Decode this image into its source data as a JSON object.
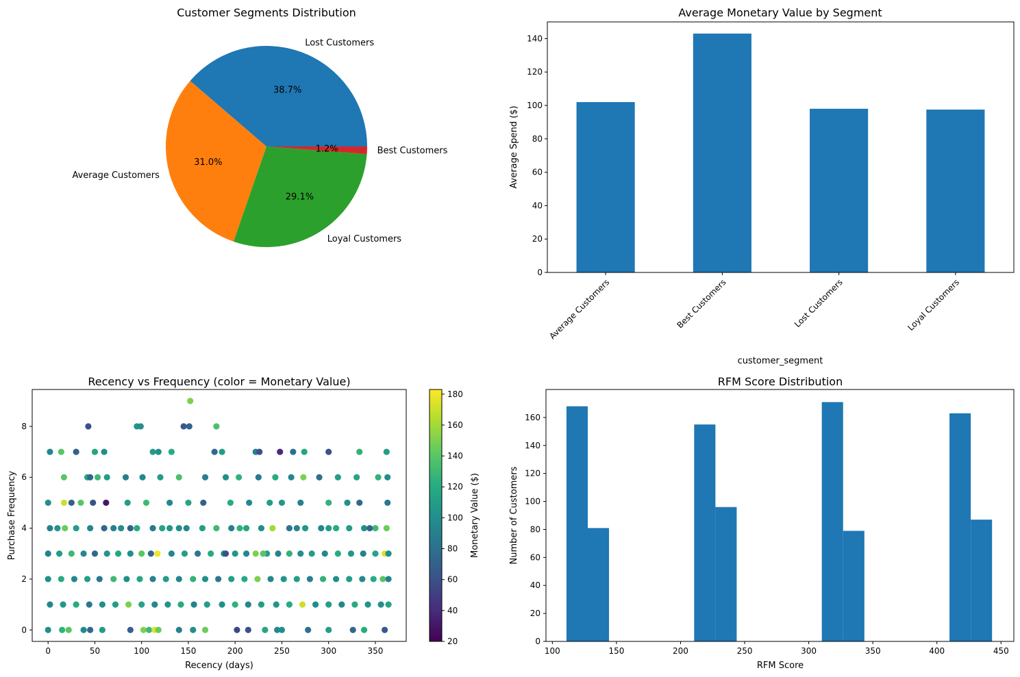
{
  "chart_data": [
    {
      "type": "pie",
      "title": "Customer Segments Distribution",
      "labels": [
        "Lost Customers",
        "Average Customers",
        "Loyal Customers",
        "Best Customers"
      ],
      "values": [
        38.7,
        31.0,
        29.1,
        1.2
      ],
      "pct_labels": [
        "38.7%",
        "31.0%",
        "29.1%",
        "1.2%"
      ],
      "colors": [
        "#1f77b4",
        "#ff7f0e",
        "#2ca02c",
        "#d62728"
      ]
    },
    {
      "type": "bar",
      "title": "Average Monetary Value by Segment",
      "categories": [
        "Average Customers",
        "Best Customers",
        "Lost Customers",
        "Loyal Customers"
      ],
      "values": [
        102,
        143,
        98,
        97.5
      ],
      "xlabel": "customer_segment",
      "ylabel": "Average Spend ($)",
      "ylim": [
        0,
        150
      ],
      "yticks": [
        0,
        20,
        40,
        60,
        80,
        100,
        120,
        140
      ],
      "color": "#1f77b4"
    },
    {
      "type": "scatter",
      "title": "Recency vs Frequency (color = Monetary Value)",
      "xlabel": "Recency (days)",
      "ylabel": "Purchase Frequency",
      "xlim": [
        -17,
        383
      ],
      "ylim": [
        -0.45,
        9.45
      ],
      "xticks": [
        0,
        50,
        100,
        150,
        200,
        250,
        300,
        350
      ],
      "yticks": [
        0,
        2,
        4,
        6,
        8
      ],
      "colorbar": {
        "label": "Monetary Value ($)",
        "range": [
          20,
          183
        ],
        "ticks": [
          20,
          40,
          60,
          80,
          100,
          120,
          140,
          160,
          180
        ],
        "colormap": "viridis"
      },
      "points": [
        [
          152,
          9,
          150
        ],
        [
          43,
          8,
          60
        ],
        [
          95,
          8,
          105
        ],
        [
          99,
          8,
          100
        ],
        [
          145,
          8,
          65
        ],
        [
          151,
          8,
          70
        ],
        [
          180,
          8,
          135
        ],
        [
          2,
          7,
          95
        ],
        [
          14,
          7,
          140
        ],
        [
          30,
          7,
          70
        ],
        [
          50,
          7,
          115
        ],
        [
          60,
          7,
          100
        ],
        [
          112,
          7,
          110
        ],
        [
          118,
          7,
          100
        ],
        [
          132,
          7,
          120
        ],
        [
          178,
          7,
          75
        ],
        [
          186,
          7,
          110
        ],
        [
          222,
          7,
          90
        ],
        [
          226,
          7,
          60
        ],
        [
          248,
          7,
          40
        ],
        [
          262,
          7,
          80
        ],
        [
          274,
          7,
          115
        ],
        [
          300,
          7,
          60
        ],
        [
          333,
          7,
          125
        ],
        [
          362,
          7,
          110
        ],
        [
          17,
          6,
          140
        ],
        [
          42,
          6,
          115
        ],
        [
          53,
          6,
          130
        ],
        [
          63,
          6,
          110
        ],
        [
          101,
          6,
          95
        ],
        [
          140,
          6,
          135
        ],
        [
          168,
          6,
          90
        ],
        [
          204,
          6,
          125
        ],
        [
          243,
          6,
          120
        ],
        [
          273,
          6,
          150
        ],
        [
          310,
          6,
          110
        ],
        [
          353,
          6,
          125
        ],
        [
          363,
          6,
          100
        ],
        [
          45,
          6,
          75
        ],
        [
          83,
          6,
          90
        ],
        [
          120,
          6,
          110
        ],
        [
          190,
          6,
          100
        ],
        [
          225,
          6,
          85
        ],
        [
          260,
          6,
          95
        ],
        [
          290,
          6,
          80
        ],
        [
          330,
          6,
          115
        ],
        [
          0,
          5,
          100
        ],
        [
          17,
          5,
          170
        ],
        [
          35,
          5,
          140
        ],
        [
          62,
          5,
          30
        ],
        [
          85,
          5,
          110
        ],
        [
          130,
          5,
          95
        ],
        [
          166,
          5,
          70
        ],
        [
          195,
          5,
          120
        ],
        [
          237,
          5,
          110
        ],
        [
          270,
          5,
          90
        ],
        [
          300,
          5,
          125
        ],
        [
          333,
          5,
          75
        ],
        [
          363,
          5,
          85
        ],
        [
          25,
          5,
          70
        ],
        [
          48,
          5,
          60
        ],
        [
          105,
          5,
          130
        ],
        [
          150,
          5,
          115
        ],
        [
          215,
          5,
          95
        ],
        [
          250,
          5,
          105
        ],
        [
          320,
          5,
          100
        ],
        [
          2,
          4,
          90
        ],
        [
          18,
          4,
          145
        ],
        [
          30,
          4,
          110
        ],
        [
          45,
          4,
          95
        ],
        [
          60,
          4,
          75
        ],
        [
          78,
          4,
          100
        ],
        [
          95,
          4,
          120
        ],
        [
          112,
          4,
          85
        ],
        [
          130,
          4,
          105
        ],
        [
          148,
          4,
          95
        ],
        [
          165,
          4,
          110
        ],
        [
          180,
          4,
          130
        ],
        [
          196,
          4,
          90
        ],
        [
          212,
          4,
          115
        ],
        [
          228,
          4,
          100
        ],
        [
          240,
          4,
          160
        ],
        [
          258,
          4,
          85
        ],
        [
          275,
          4,
          105
        ],
        [
          292,
          4,
          95
        ],
        [
          308,
          4,
          120
        ],
        [
          322,
          4,
          110
        ],
        [
          338,
          4,
          100
        ],
        [
          350,
          4,
          130
        ],
        [
          362,
          4,
          145
        ],
        [
          10,
          4,
          105
        ],
        [
          70,
          4,
          90
        ],
        [
          88,
          4,
          70
        ],
        [
          122,
          4,
          115
        ],
        [
          140,
          4,
          100
        ],
        [
          205,
          4,
          125
        ],
        [
          266,
          4,
          95
        ],
        [
          300,
          4,
          110
        ],
        [
          344,
          4,
          75
        ],
        [
          0,
          3,
          90
        ],
        [
          12,
          3,
          110
        ],
        [
          25,
          3,
          130
        ],
        [
          38,
          3,
          95
        ],
        [
          50,
          3,
          75
        ],
        [
          63,
          3,
          105
        ],
        [
          75,
          3,
          115
        ],
        [
          88,
          3,
          100
        ],
        [
          100,
          3,
          140
        ],
        [
          117,
          3,
          180
        ],
        [
          132,
          3,
          95
        ],
        [
          146,
          3,
          110
        ],
        [
          160,
          3,
          85
        ],
        [
          174,
          3,
          120
        ],
        [
          188,
          3,
          100
        ],
        [
          200,
          3,
          105
        ],
        [
          212,
          3,
          95
        ],
        [
          222,
          3,
          150
        ],
        [
          234,
          3,
          110
        ],
        [
          246,
          3,
          90
        ],
        [
          258,
          3,
          125
        ],
        [
          270,
          3,
          100
        ],
        [
          282,
          3,
          110
        ],
        [
          296,
          3,
          95
        ],
        [
          310,
          3,
          120
        ],
        [
          324,
          3,
          105
        ],
        [
          337,
          3,
          90
        ],
        [
          350,
          3,
          115
        ],
        [
          360,
          3,
          175
        ],
        [
          364,
          3,
          100
        ],
        [
          230,
          3,
          140
        ],
        [
          190,
          3,
          60
        ],
        [
          110,
          3,
          75
        ],
        [
          0,
          2,
          100
        ],
        [
          14,
          2,
          120
        ],
        [
          28,
          2,
          95
        ],
        [
          42,
          2,
          110
        ],
        [
          55,
          2,
          85
        ],
        [
          70,
          2,
          130
        ],
        [
          84,
          2,
          100
        ],
        [
          98,
          2,
          115
        ],
        [
          112,
          2,
          90
        ],
        [
          126,
          2,
          110
        ],
        [
          140,
          2,
          95
        ],
        [
          155,
          2,
          125
        ],
        [
          168,
          2,
          100
        ],
        [
          182,
          2,
          85
        ],
        [
          196,
          2,
          110
        ],
        [
          210,
          2,
          120
        ],
        [
          224,
          2,
          150
        ],
        [
          238,
          2,
          95
        ],
        [
          252,
          2,
          105
        ],
        [
          266,
          2,
          110
        ],
        [
          280,
          2,
          90
        ],
        [
          294,
          2,
          125
        ],
        [
          308,
          2,
          100
        ],
        [
          322,
          2,
          110
        ],
        [
          336,
          2,
          95
        ],
        [
          348,
          2,
          120
        ],
        [
          358,
          2,
          140
        ],
        [
          364,
          2,
          90
        ],
        [
          2,
          1,
          95
        ],
        [
          16,
          1,
          105
        ],
        [
          30,
          1,
          120
        ],
        [
          44,
          1,
          85
        ],
        [
          58,
          1,
          100
        ],
        [
          72,
          1,
          110
        ],
        [
          86,
          1,
          150
        ],
        [
          100,
          1,
          115
        ],
        [
          114,
          1,
          95
        ],
        [
          128,
          1,
          105
        ],
        [
          142,
          1,
          120
        ],
        [
          156,
          1,
          90
        ],
        [
          170,
          1,
          110
        ],
        [
          186,
          1,
          100
        ],
        [
          200,
          1,
          125
        ],
        [
          214,
          1,
          95
        ],
        [
          228,
          1,
          110
        ],
        [
          244,
          1,
          105
        ],
        [
          258,
          1,
          120
        ],
        [
          272,
          1,
          170
        ],
        [
          286,
          1,
          100
        ],
        [
          300,
          1,
          110
        ],
        [
          314,
          1,
          95
        ],
        [
          328,
          1,
          120
        ],
        [
          342,
          1,
          105
        ],
        [
          356,
          1,
          100
        ],
        [
          364,
          1,
          115
        ],
        [
          0,
          0,
          100
        ],
        [
          15,
          0,
          125
        ],
        [
          22,
          0,
          140
        ],
        [
          38,
          0,
          95
        ],
        [
          45,
          0,
          75
        ],
        [
          58,
          0,
          110
        ],
        [
          88,
          0,
          70
        ],
        [
          102,
          0,
          150
        ],
        [
          108,
          0,
          130
        ],
        [
          114,
          0,
          175
        ],
        [
          118,
          0,
          145
        ],
        [
          140,
          0,
          90
        ],
        [
          155,
          0,
          100
        ],
        [
          168,
          0,
          145
        ],
        [
          202,
          0,
          55
        ],
        [
          214,
          0,
          60
        ],
        [
          232,
          0,
          115
        ],
        [
          245,
          0,
          95
        ],
        [
          250,
          0,
          100
        ],
        [
          278,
          0,
          80
        ],
        [
          300,
          0,
          110
        ],
        [
          326,
          0,
          75
        ],
        [
          338,
          0,
          120
        ],
        [
          360,
          0,
          65
        ]
      ]
    },
    {
      "type": "bar",
      "subtype": "histogram",
      "title": "RFM Score Distribution",
      "xlabel": "RFM Score",
      "ylabel": "Number of Customers",
      "xlim": [
        95,
        460
      ],
      "ylim": [
        0,
        180
      ],
      "xticks": [
        100,
        150,
        200,
        250,
        300,
        350,
        400,
        450
      ],
      "yticks": [
        0,
        20,
        40,
        60,
        80,
        100,
        120,
        140,
        160
      ],
      "bin_edges": [
        111,
        127.6,
        144.2,
        160.8,
        177.4,
        194,
        210.6,
        227.2,
        243.8,
        260.4,
        277,
        293.6,
        310.2,
        326.8,
        343.4,
        360,
        376.6,
        393.2,
        409.8,
        426.4,
        443
      ],
      "values": [
        168,
        81,
        0,
        0,
        0,
        0,
        155,
        96,
        0,
        0,
        0,
        0,
        171,
        79,
        0,
        0,
        0,
        0,
        163,
        87
      ],
      "color": "#1f77b4"
    }
  ]
}
